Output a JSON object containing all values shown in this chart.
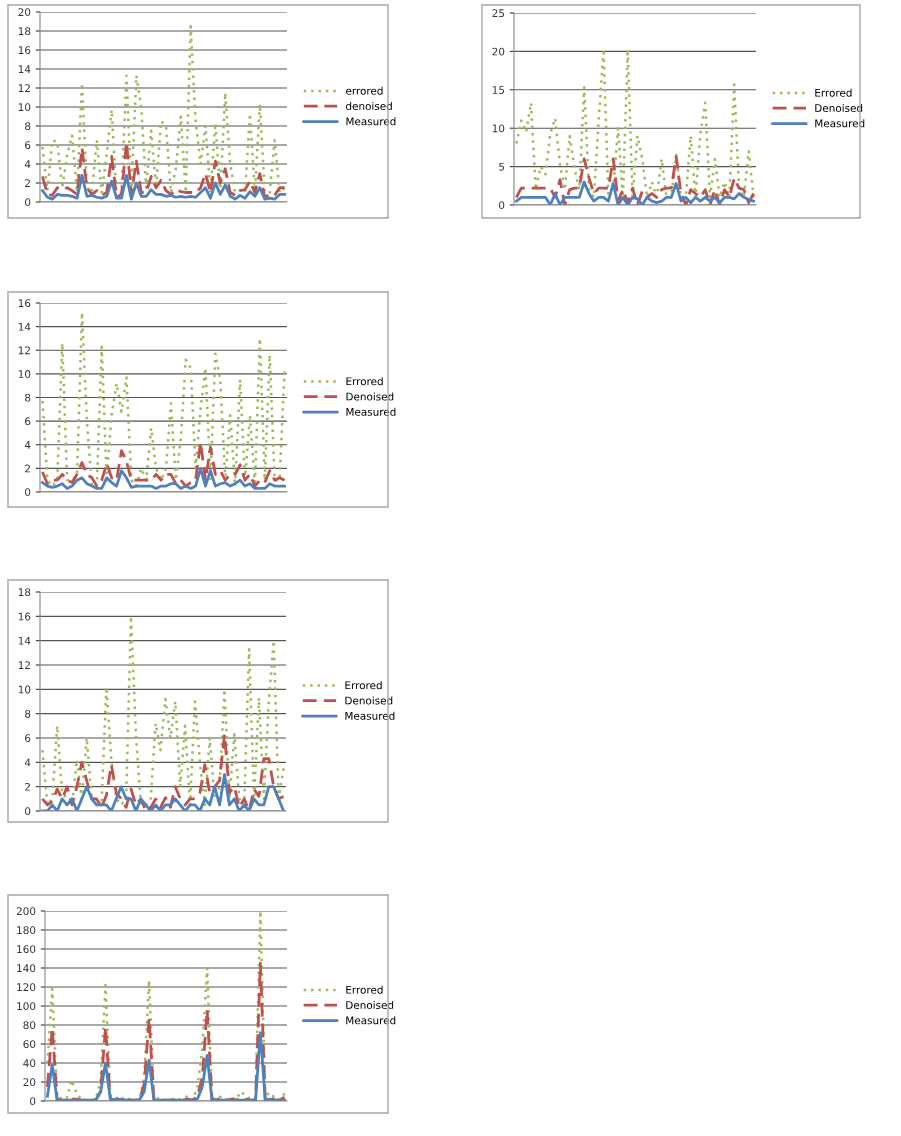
{
  "chart_data": [
    {
      "type": "line",
      "categories": [
        null,
        null,
        null,
        null,
        null,
        null,
        null,
        null,
        null,
        null,
        null,
        null,
        null,
        null,
        null,
        null,
        null,
        null,
        null,
        null,
        null,
        null,
        null,
        null,
        null,
        null,
        null,
        null,
        null,
        null,
        null,
        null,
        null,
        null,
        null,
        null,
        null,
        null,
        null,
        null,
        null,
        null,
        null,
        null,
        null,
        null,
        null,
        null,
        null,
        null
      ],
      "ylim": [
        0,
        20
      ],
      "yticks": [
        0,
        2,
        4,
        6,
        8,
        10,
        12,
        14,
        16,
        18,
        20
      ],
      "grid": "y",
      "legend": "right",
      "tick_labels": "y",
      "series": [
        {
          "name": "errored",
          "color": "#9bbb59",
          "line_style": "dotted",
          "values": [
            5.8,
            1.2,
            6.5,
            6.3,
            1.5,
            5,
            7,
            1,
            12.5,
            1.5,
            1,
            6.5,
            1,
            5,
            9.7,
            0.5,
            1,
            13.3,
            1,
            13.3,
            10,
            1.5,
            7.5,
            1.5,
            8.5,
            8,
            1,
            3.5,
            9,
            1,
            18.5,
            8.5,
            4,
            8,
            1,
            8.3,
            1,
            11.5,
            4,
            1,
            1.2,
            1,
            9.3,
            1,
            10.3,
            1,
            1,
            6.5,
            1,
            1.5
          ]
        },
        {
          "name": "denoised",
          "color": "#c0504d",
          "line_style": "dashed",
          "values": [
            2.7,
            0.8,
            0.7,
            1.5,
            1.3,
            1.5,
            1.2,
            0.8,
            5.7,
            1.5,
            0.8,
            1.2,
            0.7,
            1,
            4.8,
            0.5,
            0.8,
            6.3,
            0.8,
            4.3,
            1,
            1,
            2.7,
            1.5,
            2.3,
            1.2,
            0.8,
            1.3,
            1.1,
            1,
            1,
            1,
            1.5,
            3,
            1,
            4.3,
            2,
            3.5,
            1,
            0.7,
            1.2,
            1.3,
            2.2,
            1,
            3,
            0.5,
            0.8,
            0.7,
            1.5,
            1.5
          ]
        },
        {
          "name": "Measured",
          "color": "#4f81bd",
          "line_style": "solid",
          "values": [
            1.2,
            0.5,
            0.3,
            0.8,
            0.7,
            0.7,
            0.6,
            0.4,
            2.8,
            0.6,
            0.7,
            0.5,
            0.4,
            0.6,
            2.2,
            0.4,
            0.4,
            2.8,
            0.3,
            2,
            0.6,
            0.6,
            1.3,
            0.8,
            0.8,
            0.6,
            0.7,
            0.5,
            0.6,
            0.5,
            0.6,
            0.5,
            1,
            1.5,
            0.4,
            2,
            0.8,
            1.8,
            0.6,
            0.3,
            0.7,
            0.4,
            1.1,
            0.6,
            1.5,
            0.3,
            0.4,
            0.3,
            0.8,
            0.8
          ]
        }
      ]
    },
    {
      "type": "line",
      "categories": [
        null,
        null,
        null,
        null,
        null,
        null,
        null,
        null,
        null,
        null,
        null,
        null,
        null,
        null,
        null,
        null,
        null,
        null,
        null,
        null,
        null,
        null,
        null,
        null,
        null,
        null,
        null,
        null,
        null,
        null,
        null,
        null,
        null,
        null,
        null,
        null,
        null,
        null,
        null,
        null,
        null,
        null,
        null,
        null,
        null,
        null,
        null,
        null,
        null,
        null
      ],
      "ylim": [
        0,
        25
      ],
      "yticks": [
        0,
        5,
        10,
        15,
        20,
        25
      ],
      "grid": "y",
      "legend": "right",
      "tick_labels": "y",
      "series": [
        {
          "name": "Errored",
          "color": "#9bbb59",
          "line_style": "dotted",
          "values": [
            8,
            11,
            9.5,
            13.3,
            2,
            5,
            4,
            9.3,
            11.3,
            5.3,
            2,
            9,
            4.8,
            2,
            15.3,
            2,
            1,
            11,
            20.3,
            1,
            2,
            10,
            1,
            20.3,
            1,
            9,
            6,
            1,
            3,
            1,
            6,
            1,
            1,
            6.5,
            1,
            1,
            9,
            1,
            9.3,
            13.3,
            1,
            6,
            1,
            3,
            1,
            15.7,
            2,
            1,
            7,
            1
          ]
        },
        {
          "name": "Denoised",
          "color": "#c0504d",
          "line_style": "dashed",
          "values": [
            1,
            2.2,
            2.2,
            2.2,
            2.2,
            2.2,
            2.2,
            2.2,
            1,
            3.3,
            0,
            2,
            2.2,
            2.2,
            6,
            3.5,
            1.5,
            2.2,
            2.2,
            2.2,
            6,
            0.5,
            2,
            0.3,
            2.2,
            0,
            1.8,
            1,
            1.5,
            1,
            2,
            2.2,
            2.2,
            6.3,
            1.5,
            0,
            2,
            1.5,
            1,
            2,
            0,
            2,
            0,
            2,
            1,
            3.5,
            2.2,
            2,
            0.3,
            1.5
          ]
        },
        {
          "name": "Measured",
          "color": "#4f81bd",
          "line_style": "solid",
          "values": [
            0.5,
            1,
            1,
            1,
            1,
            1,
            1,
            0,
            1.5,
            0,
            1,
            1,
            1,
            1,
            3,
            1.5,
            0.5,
            1,
            1,
            0.5,
            2.8,
            0,
            1,
            0,
            1,
            0.8,
            0,
            1,
            0.5,
            0.3,
            0.5,
            1,
            1,
            2.8,
            0.5,
            1,
            0.3,
            1,
            0.5,
            1,
            0.5,
            1,
            0.3,
            1,
            1,
            0.8,
            1.5,
            1,
            0.7,
            0.5
          ]
        }
      ]
    },
    {
      "type": "line",
      "categories": [
        null,
        null,
        null,
        null,
        null,
        null,
        null,
        null,
        null,
        null,
        null,
        null,
        null,
        null,
        null,
        null,
        null,
        null,
        null,
        null,
        null,
        null,
        null,
        null,
        null,
        null,
        null,
        null,
        null,
        null,
        null,
        null,
        null,
        null,
        null,
        null,
        null,
        null,
        null,
        null,
        null,
        null,
        null,
        null,
        null,
        null,
        null,
        null,
        null,
        null
      ],
      "ylim": [
        0,
        16
      ],
      "yticks": [
        0,
        2,
        4,
        6,
        8,
        10,
        12,
        14,
        16
      ],
      "grid": "y",
      "legend": "right",
      "tick_labels": "y",
      "series": [
        {
          "name": "Errored",
          "color": "#9bbb59",
          "line_style": "dotted",
          "values": [
            7.7,
            1,
            0.5,
            1,
            12.6,
            1,
            1,
            1.5,
            15.2,
            6,
            0.5,
            0.5,
            12.3,
            1,
            6.5,
            9.2,
            6.8,
            9.7,
            1,
            0.5,
            2,
            1,
            5.4,
            2,
            1,
            2,
            7.5,
            1,
            4.5,
            11.2,
            10.5,
            2,
            7,
            10.5,
            1,
            11.7,
            9.5,
            1,
            6.5,
            0.5,
            9.5,
            1,
            6.5,
            0.5,
            13,
            1,
            11.6,
            1,
            1,
            10.2
          ]
        },
        {
          "name": "Denoised",
          "color": "#c0504d",
          "line_style": "dashed",
          "values": [
            1.7,
            0.7,
            1,
            1,
            1.5,
            1,
            0.8,
            1.5,
            2.5,
            1.5,
            1.2,
            0.5,
            1,
            2.4,
            1.2,
            1,
            3.5,
            2.6,
            1,
            1,
            1,
            1,
            1,
            1.5,
            1,
            1.5,
            1.5,
            0.7,
            1,
            0.5,
            0.8,
            1,
            4.2,
            1,
            3.8,
            1.5,
            1.8,
            1,
            1.5,
            1.5,
            2.3,
            1,
            1.5,
            0.5,
            1,
            0.8,
            1.8,
            1,
            1.2,
            1
          ]
        },
        {
          "name": "Measured",
          "color": "#4f81bd",
          "line_style": "solid",
          "values": [
            0.8,
            0.5,
            0.4,
            0.5,
            0.7,
            0.3,
            0.5,
            1,
            1.2,
            0.7,
            0.5,
            0.3,
            0.3,
            1.2,
            0.8,
            0.5,
            1.8,
            1.2,
            0.4,
            0.5,
            0.5,
            0.5,
            0.5,
            0.3,
            0.5,
            0.5,
            0.7,
            0.7,
            0.3,
            0.5,
            0.3,
            0.5,
            2,
            0.5,
            1.8,
            0.5,
            0.7,
            0.8,
            0.5,
            0.7,
            1,
            0.5,
            0.7,
            0.3,
            0.3,
            0.3,
            0.7,
            0.5,
            0.5,
            0.5
          ]
        }
      ]
    },
    {
      "type": "line",
      "categories": [
        null,
        null,
        null,
        null,
        null,
        null,
        null,
        null,
        null,
        null,
        null,
        null,
        null,
        null,
        null,
        null,
        null,
        null,
        null,
        null,
        null,
        null,
        null,
        null,
        null,
        null,
        null,
        null,
        null,
        null,
        null,
        null,
        null,
        null,
        null,
        null,
        null,
        null,
        null,
        null,
        null,
        null,
        null,
        null,
        null,
        null,
        null,
        null,
        null,
        null
      ],
      "ylim": [
        0,
        18
      ],
      "yticks": [
        0,
        2,
        4,
        6,
        8,
        10,
        12,
        14,
        16,
        18
      ],
      "grid": "y",
      "legend": "right",
      "tick_labels": "y",
      "series": [
        {
          "name": "Errored",
          "color": "#9bbb59",
          "line_style": "dotted",
          "values": [
            5,
            0.5,
            1,
            7,
            1.5,
            1,
            0.5,
            4.2,
            1,
            6,
            1,
            1,
            0.5,
            10.2,
            4.2,
            1,
            0.5,
            1,
            16,
            6.3,
            0.5,
            0.5,
            1,
            7.2,
            5,
            9.2,
            6,
            9,
            2,
            7,
            0.5,
            9,
            4,
            0.5,
            6,
            1,
            2,
            10,
            1,
            6.3,
            1,
            0.5,
            13.3,
            1,
            9.3,
            1,
            9,
            14,
            1,
            3.5
          ]
        },
        {
          "name": "Denoised",
          "color": "#c0504d",
          "line_style": "dashed",
          "values": [
            1,
            0.5,
            0.8,
            1.8,
            1,
            2,
            0.5,
            2,
            4,
            2.5,
            1,
            1,
            0.3,
            1.3,
            3.8,
            1.5,
            1,
            0.3,
            1.8,
            0.5,
            1,
            0,
            0.3,
            1,
            0.3,
            1.1,
            0.3,
            2,
            1,
            0.5,
            1,
            1,
            1.5,
            3.8,
            1.5,
            2,
            2.5,
            6.3,
            1.5,
            2,
            0.3,
            1,
            0,
            1.8,
            1.2,
            4.3,
            4.3,
            2,
            1,
            1.2
          ]
        },
        {
          "name": "Measured",
          "color": "#4f81bd",
          "line_style": "solid",
          "values": [
            0,
            0,
            0.5,
            0,
            1,
            0.5,
            1,
            0,
            1,
            2,
            1,
            0.5,
            0.5,
            0.5,
            0,
            1,
            2,
            1,
            1,
            0,
            1,
            0.5,
            0,
            0.5,
            0,
            0.5,
            0.5,
            1,
            0.5,
            0,
            0.5,
            0.5,
            0,
            1,
            0.5,
            2,
            0.5,
            3,
            0.5,
            1,
            0,
            0.5,
            0,
            1,
            0.5,
            0.5,
            2,
            2,
            1,
            0
          ]
        }
      ]
    },
    {
      "type": "line",
      "categories": [
        null,
        null,
        null,
        null,
        null,
        null,
        null,
        null,
        null,
        null,
        null,
        null,
        null,
        null,
        null,
        null,
        null,
        null,
        null,
        null,
        null,
        null,
        null,
        null,
        null,
        null,
        null,
        null,
        null,
        null,
        null,
        null,
        null,
        null,
        null,
        null,
        null,
        null,
        null,
        null,
        null,
        null,
        null,
        null,
        null,
        null,
        null,
        null,
        null,
        null
      ],
      "ylim": [
        0,
        200
      ],
      "yticks": [
        0,
        20,
        40,
        60,
        80,
        100,
        120,
        140,
        160,
        180,
        200
      ],
      "grid": "y",
      "legend": "right",
      "tick_labels": "y",
      "series": [
        {
          "name": "Errored",
          "color": "#9bbb59",
          "line_style": "dotted",
          "values": [
            40,
            118,
            5,
            2,
            3,
            22,
            8,
            2,
            1,
            1,
            2,
            22,
            122,
            5,
            2,
            5,
            1,
            2,
            1,
            1,
            25,
            127,
            6,
            2,
            1,
            1,
            2,
            1,
            3,
            5,
            1,
            15,
            55,
            140,
            3,
            2,
            5,
            1,
            3,
            2,
            10,
            5,
            2,
            3,
            200,
            5,
            9,
            3,
            1,
            8
          ]
        },
        {
          "name": "Denoised",
          "color": "#c0504d",
          "line_style": "dashed",
          "values": [
            15,
            77,
            2,
            1,
            1,
            2,
            2,
            1,
            1,
            1,
            1,
            10,
            78,
            2,
            1,
            4,
            1,
            1,
            1,
            1,
            18,
            87,
            2,
            1,
            1,
            1,
            1,
            1,
            1,
            2,
            1,
            5,
            25,
            96,
            2,
            1,
            4,
            1,
            2,
            1,
            3,
            2,
            1,
            1,
            145,
            2,
            4,
            1,
            1,
            4
          ]
        },
        {
          "name": "Measured",
          "color": "#4f81bd",
          "line_style": "solid",
          "values": [
            5,
            38,
            1,
            1,
            1,
            1,
            1,
            1,
            1,
            1,
            1,
            10,
            40,
            2,
            1,
            2,
            1,
            1,
            1,
            1,
            10,
            43,
            1,
            1,
            1,
            1,
            1,
            1,
            1,
            1,
            1,
            2,
            15,
            48,
            1,
            1,
            1,
            1,
            1,
            1,
            1,
            1,
            1,
            1,
            72,
            1,
            2,
            1,
            1,
            1
          ]
        }
      ]
    }
  ]
}
